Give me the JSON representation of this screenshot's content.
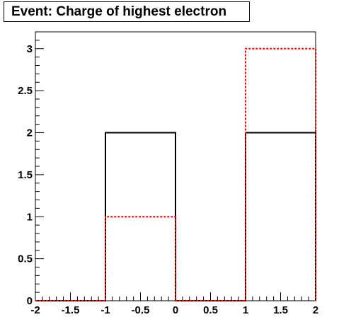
{
  "title": "Event: Charge of highest electron",
  "chart_data": {
    "type": "histogram",
    "title": "Event: Charge of highest electron",
    "xlabel": "",
    "ylabel": "",
    "xlim": [
      -2,
      2
    ],
    "ylim": [
      0,
      3.2
    ],
    "x_ticks": [
      "-2",
      "-1.5",
      "-1",
      "-0.5",
      "0",
      "0.5",
      "1",
      "1.5",
      "2"
    ],
    "y_ticks": [
      "0",
      "0.5",
      "1",
      "1.5",
      "2",
      "2.5",
      "3"
    ],
    "bin_edges": [
      -2,
      -1,
      0,
      1,
      2
    ],
    "series": [
      {
        "style": "solid",
        "color": "#000000",
        "values": [
          0,
          2,
          0,
          2
        ]
      },
      {
        "style": "dashed",
        "color": "#ff0000",
        "values": [
          0,
          1,
          0,
          3
        ]
      }
    ]
  }
}
